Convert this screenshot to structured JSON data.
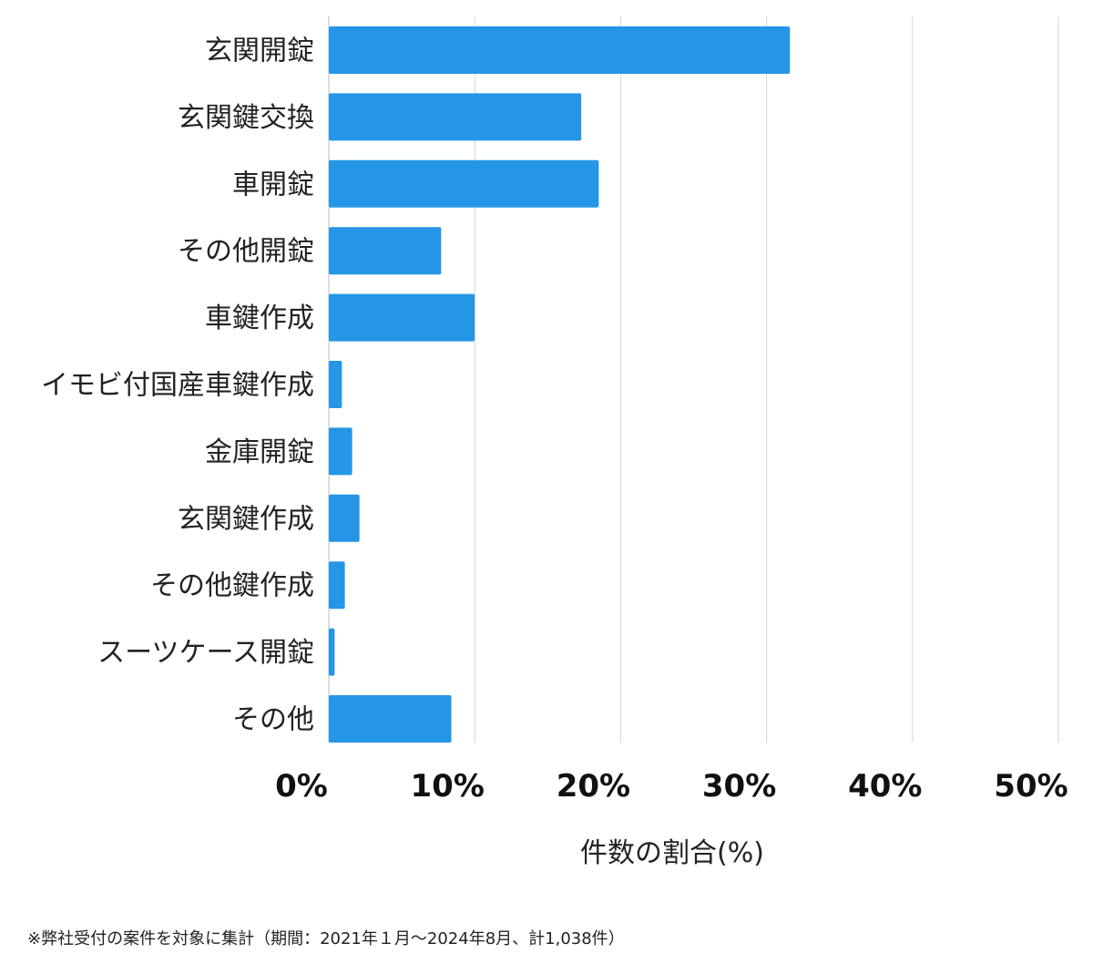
{
  "chart_data": {
    "type": "bar",
    "orientation": "horizontal",
    "categories": [
      "玄関開錠",
      "玄関鍵交換",
      "車開錠",
      "その他開錠",
      "車鍵作成",
      "イモビ付国産車鍵作成",
      "金庫開錠",
      "玄関鍵作成",
      "その他鍵作成",
      "スーツケース開錠",
      "その他"
    ],
    "values": [
      31.6,
      17.3,
      18.5,
      7.7,
      10.0,
      0.9,
      1.6,
      2.1,
      1.1,
      0.4,
      8.4
    ],
    "xlabel": "件数の割合(%)",
    "ylabel": "",
    "xlim": [
      0,
      50
    ],
    "xticks": [
      "0%",
      "10%",
      "20%",
      "30%",
      "40%",
      "50%"
    ],
    "grid": "vertical",
    "bar_color": "#2596e6"
  },
  "footnote": "※弊社受付の案件を対象に集計（期間：2021年１月～2024年8月、計1,038件）"
}
